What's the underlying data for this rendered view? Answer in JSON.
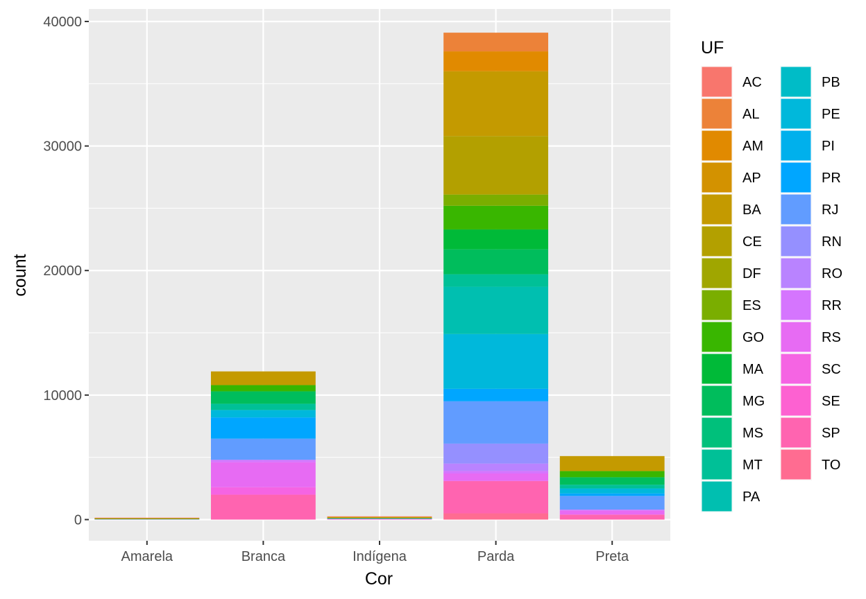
{
  "chart_data": {
    "type": "bar",
    "stacked": true,
    "categories": [
      "Amarela",
      "Branca",
      "Indígena",
      "Parda",
      "Preta"
    ],
    "xlabel": "Cor",
    "ylabel": "count",
    "ylim": [
      -1700,
      41000
    ],
    "yticks": [
      0,
      10000,
      20000,
      30000,
      40000
    ],
    "ytick_labels": [
      "0",
      "10000",
      "20000",
      "30000",
      "40000"
    ],
    "grid": true,
    "legend": {
      "title": "UF",
      "position": "right",
      "columns": 2
    },
    "series": [
      {
        "name": "AC",
        "color": "#F8766D",
        "values": [
          10,
          0,
          20,
          0,
          0
        ]
      },
      {
        "name": "AL",
        "color": "#EC8239",
        "values": [
          20,
          0,
          20,
          1500,
          0
        ]
      },
      {
        "name": "AM",
        "color": "#E18A00",
        "values": [
          10,
          0,
          30,
          1600,
          0
        ]
      },
      {
        "name": "AP",
        "color": "#D39200",
        "values": [
          0,
          0,
          20,
          0,
          0
        ]
      },
      {
        "name": "BA",
        "color": "#C49A00",
        "values": [
          30,
          1100,
          20,
          5200,
          1200
        ]
      },
      {
        "name": "CE",
        "color": "#B3A000",
        "values": [
          10,
          0,
          10,
          4700,
          0
        ]
      },
      {
        "name": "DF",
        "color": "#A0A600",
        "values": [
          0,
          0,
          0,
          0,
          0
        ]
      },
      {
        "name": "ES",
        "color": "#7AAE00",
        "values": [
          0,
          0,
          0,
          900,
          0
        ]
      },
      {
        "name": "GO",
        "color": "#39B600",
        "values": [
          10,
          500,
          10,
          1900,
          500
        ]
      },
      {
        "name": "MA",
        "color": "#00BA38",
        "values": [
          0,
          0,
          10,
          1600,
          0
        ]
      },
      {
        "name": "MG",
        "color": "#00BD5C",
        "values": [
          10,
          1000,
          10,
          2000,
          600
        ]
      },
      {
        "name": "MS",
        "color": "#00C07B",
        "values": [
          0,
          0,
          0,
          0,
          0
        ]
      },
      {
        "name": "MT",
        "color": "#00C097",
        "values": [
          0,
          500,
          10,
          1000,
          300
        ]
      },
      {
        "name": "PA",
        "color": "#00BFB0",
        "values": [
          10,
          0,
          10,
          3800,
          0
        ]
      },
      {
        "name": "PB",
        "color": "#00BCC7",
        "values": [
          0,
          0,
          0,
          0,
          0
        ]
      },
      {
        "name": "PE",
        "color": "#00B8DB",
        "values": [
          0,
          600,
          0,
          4400,
          400
        ]
      },
      {
        "name": "PI",
        "color": "#00B0EC",
        "values": [
          0,
          0,
          0,
          0,
          0
        ]
      },
      {
        "name": "PR",
        "color": "#00A6FF",
        "values": [
          0,
          1700,
          0,
          1000,
          200
        ]
      },
      {
        "name": "RJ",
        "color": "#619CFF",
        "values": [
          10,
          1700,
          10,
          3400,
          1100
        ]
      },
      {
        "name": "RN",
        "color": "#9590FF",
        "values": [
          0,
          0,
          0,
          1600,
          0
        ]
      },
      {
        "name": "RO",
        "color": "#B983FF",
        "values": [
          0,
          0,
          10,
          600,
          0
        ]
      },
      {
        "name": "RR",
        "color": "#D575FE",
        "values": [
          0,
          200,
          10,
          200,
          100
        ]
      },
      {
        "name": "RS",
        "color": "#E76BF3",
        "values": [
          0,
          2000,
          20,
          600,
          300
        ]
      },
      {
        "name": "SC",
        "color": "#F564E3",
        "values": [
          0,
          600,
          0,
          0,
          0
        ]
      },
      {
        "name": "SE",
        "color": "#FD61D1",
        "values": [
          0,
          0,
          10,
          0,
          0
        ]
      },
      {
        "name": "SP",
        "color": "#FF64B0",
        "values": [
          30,
          2000,
          30,
          2600,
          400
        ]
      },
      {
        "name": "TO",
        "color": "#FF6C91",
        "values": [
          0,
          0,
          0,
          500,
          0
        ]
      }
    ]
  }
}
